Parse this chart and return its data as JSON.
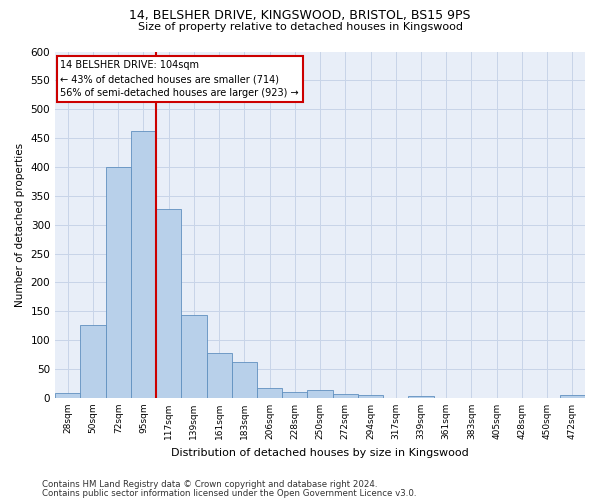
{
  "title1": "14, BELSHER DRIVE, KINGSWOOD, BRISTOL, BS15 9PS",
  "title2": "Size of property relative to detached houses in Kingswood",
  "xlabel": "Distribution of detached houses by size in Kingswood",
  "ylabel": "Number of detached properties",
  "footnote1": "Contains HM Land Registry data © Crown copyright and database right 2024.",
  "footnote2": "Contains public sector information licensed under the Open Government Licence v3.0.",
  "bar_labels": [
    "28sqm",
    "50sqm",
    "72sqm",
    "95sqm",
    "117sqm",
    "139sqm",
    "161sqm",
    "183sqm",
    "206sqm",
    "228sqm",
    "250sqm",
    "272sqm",
    "294sqm",
    "317sqm",
    "339sqm",
    "361sqm",
    "383sqm",
    "405sqm",
    "428sqm",
    "450sqm",
    "472sqm"
  ],
  "bar_values": [
    8,
    127,
    400,
    463,
    327,
    143,
    78,
    63,
    18,
    11,
    13,
    7,
    5,
    0,
    4,
    0,
    0,
    0,
    0,
    0,
    5
  ],
  "bar_color": "#b8d0ea",
  "bar_edge_color": "#6090c0",
  "grid_color": "#c8d4e8",
  "background_color": "#e8eef8",
  "property_label": "14 BELSHER DRIVE: 104sqm",
  "pct_smaller": 43,
  "pct_smaller_count": 714,
  "pct_larger": 56,
  "pct_larger_count": 923,
  "vline_x_index": 3.5,
  "annotation_box_color": "#ffffff",
  "annotation_border_color": "#cc0000",
  "ylim": [
    0,
    600
  ],
  "yticks": [
    0,
    50,
    100,
    150,
    200,
    250,
    300,
    350,
    400,
    450,
    500,
    550,
    600
  ]
}
